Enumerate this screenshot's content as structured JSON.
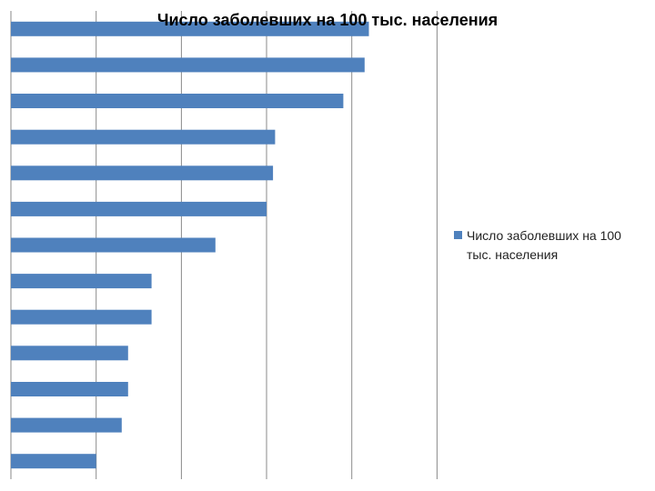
{
  "chart_data": {
    "type": "bar",
    "orientation": "horizontal",
    "title": "Число заболевших на 100 тыс. населения",
    "xlabel": "",
    "ylabel": "",
    "xlim": [
      0,
      100
    ],
    "grid": true,
    "legend_position": "right",
    "series": [
      {
        "name": "Число заболевших на 100 тыс. населения",
        "color": "#4f81bd",
        "values": [
          84,
          83,
          78,
          62,
          61.5,
          60,
          48,
          33,
          33,
          27.5,
          27.5,
          26,
          20
        ]
      }
    ]
  }
}
